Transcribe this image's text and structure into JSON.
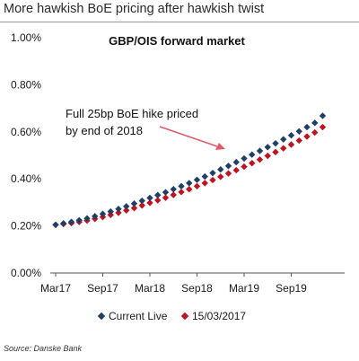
{
  "header": {
    "title": "More hawkish BoE pricing after hawkish twist"
  },
  "footer": {
    "source": "Source: Danske Bank"
  },
  "chart_data": {
    "type": "scatter",
    "title": "GBP/OIS forward market",
    "annotation": {
      "line1": "Full 25bp BoE hike priced",
      "line2": "by end of 2018"
    },
    "x_tick_labels": [
      "Mar17",
      "Sep17",
      "Mar18",
      "Sep18",
      "Mar19",
      "Sep19"
    ],
    "y_tick_labels": [
      "0.00%",
      "0.20%",
      "0.40%",
      "0.60%",
      "0.80%",
      "1.00%"
    ],
    "ylim": [
      0,
      1.0
    ],
    "xlim_months_from_mar17": [
      0,
      35
    ],
    "grid": false,
    "legend_position": "bottom",
    "colors": {
      "current": "#1f3f66",
      "previous": "#c0121f",
      "arrow": "#e05a6a"
    },
    "series": [
      {
        "name": "Current Live",
        "color": "#1f3f66",
        "marker": "diamond",
        "x_months": [
          0,
          1,
          2,
          3,
          4,
          5,
          6,
          7,
          8,
          9,
          10,
          11,
          12,
          13,
          14,
          15,
          16,
          17,
          18,
          19,
          20,
          21,
          22,
          23,
          24,
          25,
          26,
          27,
          28,
          29,
          30,
          31,
          32,
          33,
          34
        ],
        "values": [
          0.205,
          0.211,
          0.217,
          0.224,
          0.232,
          0.241,
          0.251,
          0.261,
          0.272,
          0.283,
          0.295,
          0.307,
          0.319,
          0.331,
          0.343,
          0.356,
          0.369,
          0.382,
          0.396,
          0.41,
          0.425,
          0.44,
          0.455,
          0.471,
          0.487,
          0.503,
          0.519,
          0.535,
          0.551,
          0.568,
          0.585,
          0.602,
          0.62,
          0.638,
          0.668
        ]
      },
      {
        "name": "15/03/2017",
        "color": "#c0121f",
        "marker": "diamond",
        "x_months": [
          0,
          1,
          2,
          3,
          4,
          5,
          6,
          7,
          8,
          9,
          10,
          11,
          12,
          13,
          14,
          15,
          16,
          17,
          18,
          19,
          20,
          21,
          22,
          23,
          24,
          25,
          26,
          27,
          28,
          29,
          30,
          31,
          32,
          33,
          34
        ],
        "values": [
          0.205,
          0.208,
          0.212,
          0.217,
          0.223,
          0.23,
          0.238,
          0.247,
          0.256,
          0.266,
          0.276,
          0.287,
          0.298,
          0.309,
          0.32,
          0.332,
          0.344,
          0.356,
          0.369,
          0.382,
          0.395,
          0.409,
          0.423,
          0.437,
          0.452,
          0.467,
          0.482,
          0.498,
          0.514,
          0.53,
          0.546,
          0.563,
          0.58,
          0.597,
          0.62
        ]
      }
    ]
  }
}
